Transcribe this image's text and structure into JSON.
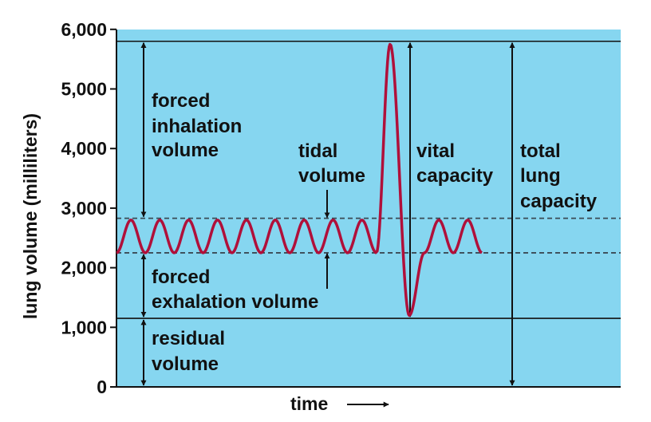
{
  "chart_data": {
    "type": "line",
    "title": "",
    "xlabel": "time",
    "ylabel": "lung volume (milliliters)",
    "ylim": [
      0,
      6000
    ],
    "yticks": [
      0,
      1000,
      2000,
      3000,
      4000,
      5000,
      6000
    ],
    "ytick_labels": [
      "0",
      "1,000",
      "2,000",
      "3,000",
      "4,000",
      "5,000",
      "6,000"
    ],
    "grid": false,
    "colors": {
      "background": "#86d6f0",
      "curve": "#b0103a",
      "reference": "#111111"
    },
    "series": [
      {
        "curve": "breathing",
        "tidal_cycles": 9,
        "tidal_min": 2250,
        "tidal_max": 2800,
        "max_inhalation": 5750,
        "max_exhalation": 1200,
        "tidal_cycles_after": 2
      }
    ],
    "reference_lines": [
      {
        "value": 5800,
        "style": "solid"
      },
      {
        "value": 2830,
        "style": "dashed"
      },
      {
        "value": 2250,
        "style": "dashed"
      },
      {
        "value": 1150,
        "style": "solid"
      }
    ],
    "annotations": [
      {
        "id": "forced-inhalation",
        "lines": [
          "forced",
          "inhalation",
          "volume"
        ],
        "from": 5800,
        "to": 2830
      },
      {
        "id": "tidal",
        "lines": [
          "tidal",
          "volume"
        ],
        "from": 2830,
        "to": 2250
      },
      {
        "id": "forced-exhalation",
        "lines": [
          "forced",
          "exhalation volume"
        ],
        "from": 2250,
        "to": 1150
      },
      {
        "id": "residual",
        "lines": [
          "residual",
          "volume"
        ],
        "from": 1150,
        "to": 0
      },
      {
        "id": "vital",
        "lines": [
          "vital",
          "capacity"
        ],
        "from": 5800,
        "to": 1150
      },
      {
        "id": "total",
        "lines": [
          "total",
          "lung",
          "capacity"
        ],
        "from": 5800,
        "to": 0
      }
    ]
  }
}
